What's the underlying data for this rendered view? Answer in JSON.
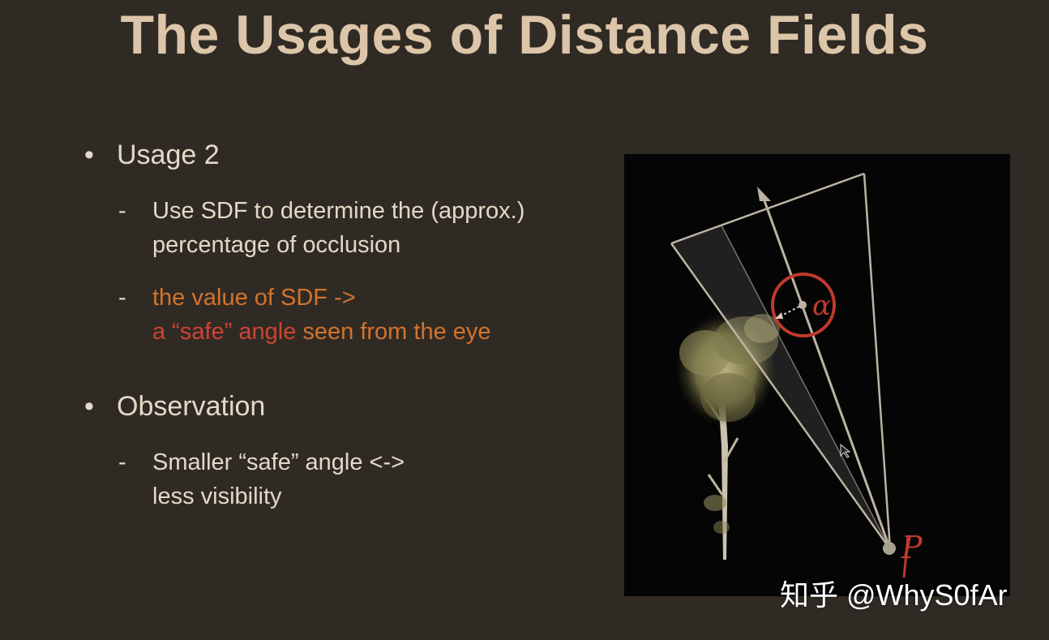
{
  "title": "The Usages of Distance Fields",
  "bullets": [
    {
      "label": "Usage 2",
      "subs": [
        {
          "lines": [
            "Use SDF to determine the (approx.)",
            "percentage of occlusion"
          ]
        },
        {
          "line1": "the value of SDF ->",
          "line2_a": "a “safe” angle",
          "line2_b": " seen from the eye"
        }
      ]
    },
    {
      "label": "Observation",
      "subs": [
        {
          "lines": [
            "Smaller “safe” angle <->",
            "less visibility"
          ]
        }
      ]
    }
  ],
  "figure": {
    "angle_symbol": "α",
    "point_label": "P"
  },
  "watermark": "知乎 @WhyS0fAr",
  "colors": {
    "background": "#302a24",
    "title": "#dcc5a8",
    "text": "#e4d8c8",
    "highlight_orange": "#d2732d",
    "highlight_red": "#cc4433",
    "annotation_red": "#c03a2b"
  }
}
